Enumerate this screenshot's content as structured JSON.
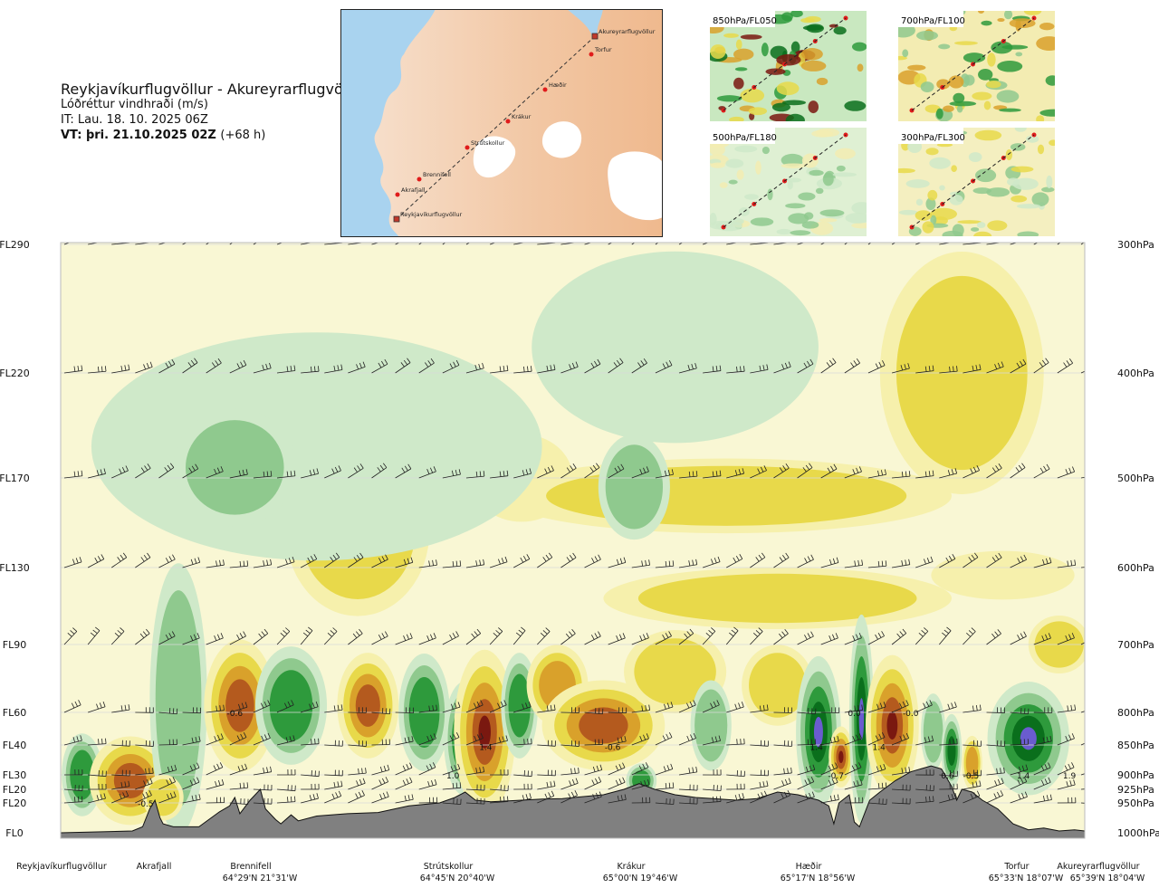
{
  "header": {
    "route": "Reykjavíkurflugvöllur - Akureyrarflugvöllur",
    "parameter": "Lóðréttur vindhraði (m/s)",
    "initial_time": "IT: Lau. 18. 10. 2025 06Z",
    "valid_time": "VT: þri. 21.10.2025 02Z",
    "lead_time": "(+68 h)"
  },
  "map": {
    "waypoints": [
      "Reykjavíkurflugvöllur",
      "Akrafjall",
      "Brennifell",
      "Strútskollur",
      "Krákur",
      "Hæðir",
      "Torfur",
      "Akureyrarflugvöllur"
    ]
  },
  "panels": [
    {
      "label": "850hPa/FL050"
    },
    {
      "label": "700hPa/FL100"
    },
    {
      "label": "500hPa/FL180"
    },
    {
      "label": "300hPa/FL300"
    }
  ],
  "colors": {
    "terrain": "#808080",
    "pos_weak": "#f6f0ac",
    "pos_mid": "#e8d94a",
    "pos_strong": "#d9a12b",
    "pos_very": "#b45a1e",
    "pos_max": "#7a1810",
    "neg_weak": "#cfe9c9",
    "neg_mid": "#8fc98e",
    "neg_strong": "#2e9a3c",
    "neg_very": "#0a6f1c",
    "neg_max": "#6a5ccf"
  },
  "chart_data": {
    "type": "heatmap",
    "title": "Lóðréttur vindhraði (m/s)",
    "left_axis": {
      "labels": [
        "FL290",
        "FL220",
        "FL170",
        "FL130",
        "FL90",
        "FL60",
        "FL40",
        "FL30",
        "FL20",
        "FL20",
        "FL0"
      ]
    },
    "right_axis": {
      "labels": [
        "300hPa",
        "400hPa",
        "500hPa",
        "600hPa",
        "700hPa",
        "800hPa",
        "850hPa",
        "900hPa",
        "925hPa",
        "950hPa",
        "1000hPa"
      ],
      "levels_hPa": [
        300,
        400,
        500,
        600,
        700,
        800,
        850,
        900,
        925,
        950,
        1000
      ],
      "range_hPa": [
        1000,
        300
      ]
    },
    "stations": [
      {
        "name": "Reykjavíkurflugvöllur",
        "coord": "",
        "x": 0.0
      },
      {
        "name": "Akrafjall",
        "coord": "",
        "x": 0.09
      },
      {
        "name": "Brennifell",
        "coord": "64°29'N 21°31'W",
        "x": 0.19
      },
      {
        "name": "Strútskollur",
        "coord": "64°45'N 20°40'W",
        "x": 0.38
      },
      {
        "name": "Krákur",
        "coord": "65°00'N 19°46'W",
        "x": 0.57
      },
      {
        "name": "Hæðir",
        "coord": "65°17'N 18°56'W",
        "x": 0.75
      },
      {
        "name": "Torfur",
        "coord": "65°33'N 18°07'W",
        "x": 0.95
      },
      {
        "name": "Akureyrarflugvöllur",
        "coord": "65°39'N 18°04'W",
        "x": 1.0
      }
    ],
    "contour_labels": [
      {
        "text": "-0.6",
        "x": 0.17,
        "p": 800
      },
      {
        "text": "-0.5",
        "x": 0.083,
        "p": 950
      },
      {
        "text": "1.0",
        "x": 0.383,
        "p": 900
      },
      {
        "text": "1.4",
        "x": 0.415,
        "p": 852
      },
      {
        "text": "-0.6",
        "x": 0.539,
        "p": 852
      },
      {
        "text": "1.4",
        "x": 0.738,
        "p": 852
      },
      {
        "text": "0.0",
        "x": 0.775,
        "p": 800
      },
      {
        "text": "-0.7",
        "x": 0.757,
        "p": 900
      },
      {
        "text": "1.4",
        "x": 0.799,
        "p": 852
      },
      {
        "text": "-0.0",
        "x": 0.83,
        "p": 800
      },
      {
        "text": "0.6",
        "x": 0.866,
        "p": 900
      },
      {
        "text": "-0.5",
        "x": 0.889,
        "p": 900
      },
      {
        "text": "1.4",
        "x": 0.94,
        "p": 900
      },
      {
        "text": "1.9",
        "x": 0.985,
        "p": 900
      }
    ],
    "terrain_profile": [
      [
        0.0,
        1000
      ],
      [
        0.07,
        997
      ],
      [
        0.08,
        990
      ],
      [
        0.087,
        960
      ],
      [
        0.092,
        945
      ],
      [
        0.097,
        975
      ],
      [
        0.1,
        985
      ],
      [
        0.11,
        990
      ],
      [
        0.135,
        990
      ],
      [
        0.155,
        965
      ],
      [
        0.165,
        955
      ],
      [
        0.17,
        940
      ],
      [
        0.175,
        968
      ],
      [
        0.185,
        945
      ],
      [
        0.195,
        925
      ],
      [
        0.2,
        960
      ],
      [
        0.21,
        978
      ],
      [
        0.215,
        985
      ],
      [
        0.225,
        970
      ],
      [
        0.232,
        980
      ],
      [
        0.25,
        972
      ],
      [
        0.28,
        968
      ],
      [
        0.31,
        966
      ],
      [
        0.34,
        955
      ],
      [
        0.37,
        950
      ],
      [
        0.385,
        940
      ],
      [
        0.395,
        930
      ],
      [
        0.405,
        945
      ],
      [
        0.42,
        948
      ],
      [
        0.45,
        945
      ],
      [
        0.47,
        943
      ],
      [
        0.49,
        942
      ],
      [
        0.53,
        935
      ],
      [
        0.55,
        925
      ],
      [
        0.565,
        915
      ],
      [
        0.58,
        925
      ],
      [
        0.6,
        935
      ],
      [
        0.62,
        940
      ],
      [
        0.66,
        945
      ],
      [
        0.68,
        942
      ],
      [
        0.7,
        930
      ],
      [
        0.72,
        935
      ],
      [
        0.74,
        945
      ],
      [
        0.75,
        955
      ],
      [
        0.755,
        985
      ],
      [
        0.76,
        950
      ],
      [
        0.77,
        935
      ],
      [
        0.775,
        982
      ],
      [
        0.78,
        990
      ],
      [
        0.79,
        945
      ],
      [
        0.8,
        930
      ],
      [
        0.815,
        910
      ],
      [
        0.83,
        895
      ],
      [
        0.85,
        885
      ],
      [
        0.86,
        890
      ],
      [
        0.87,
        920
      ],
      [
        0.875,
        945
      ],
      [
        0.88,
        925
      ],
      [
        0.89,
        930
      ],
      [
        0.9,
        945
      ],
      [
        0.915,
        960
      ],
      [
        0.93,
        985
      ],
      [
        0.945,
        995
      ],
      [
        0.96,
        992
      ],
      [
        0.975,
        997
      ],
      [
        0.99,
        995
      ],
      [
        1.0,
        997
      ]
    ],
    "cells": [
      {
        "v": 0.3,
        "x": 0.29,
        "p": 560,
        "rx": 0.07,
        "rp": 95
      },
      {
        "v": 0.25,
        "x": 0.45,
        "p": 500,
        "rx": 0.05,
        "rp": 45
      },
      {
        "v": 0.3,
        "x": 0.65,
        "p": 520,
        "rx": 0.22,
        "rp": 40
      },
      {
        "v": 0.3,
        "x": 0.88,
        "p": 400,
        "rx": 0.08,
        "rp": 110
      },
      {
        "v": 0.35,
        "x": 0.7,
        "p": 640,
        "rx": 0.17,
        "rp": 40
      },
      {
        "v": 0.25,
        "x": 0.92,
        "p": 610,
        "rx": 0.07,
        "rp": 30
      },
      {
        "v": -0.2,
        "x": 0.25,
        "p": 470,
        "rx": 0.22,
        "rp": 110
      },
      {
        "v": -0.2,
        "x": 0.6,
        "p": 380,
        "rx": 0.14,
        "rp": 80
      },
      {
        "v": -0.45,
        "x": 0.17,
        "p": 490,
        "rx": 0.06,
        "rp": 60
      },
      {
        "v": -0.35,
        "x": 0.56,
        "p": 510,
        "rx": 0.035,
        "rp": 55
      },
      {
        "v": -0.6,
        "x": 0.021,
        "p": 900,
        "rx": 0.02,
        "rp": 70
      },
      {
        "v": 1.0,
        "x": 0.068,
        "p": 910,
        "rx": 0.04,
        "rp": 75
      },
      {
        "v": -0.4,
        "x": 0.115,
        "p": 780,
        "rx": 0.028,
        "rp": 200
      },
      {
        "v": 1.0,
        "x": 0.175,
        "p": 790,
        "rx": 0.035,
        "rp": 100
      },
      {
        "v": -0.6,
        "x": 0.225,
        "p": 790,
        "rx": 0.035,
        "rp": 90
      },
      {
        "v": 0.9,
        "x": 0.3,
        "p": 790,
        "rx": 0.03,
        "rp": 80
      },
      {
        "v": -0.6,
        "x": 0.355,
        "p": 800,
        "rx": 0.025,
        "rp": 90
      },
      {
        "v": -1.2,
        "x": 0.394,
        "p": 840,
        "rx": 0.02,
        "rp": 90
      },
      {
        "v": 1.4,
        "x": 0.414,
        "p": 830,
        "rx": 0.03,
        "rp": 130
      },
      {
        "v": -0.8,
        "x": 0.448,
        "p": 790,
        "rx": 0.018,
        "rp": 80
      },
      {
        "v": 0.8,
        "x": 0.485,
        "p": 760,
        "rx": 0.03,
        "rp": 60
      },
      {
        "v": 1.0,
        "x": 0.53,
        "p": 820,
        "rx": 0.06,
        "rp": 70
      },
      {
        "v": 0.55,
        "x": 0.6,
        "p": 740,
        "rx": 0.05,
        "rp": 60
      },
      {
        "v": -0.7,
        "x": 0.567,
        "p": 910,
        "rx": 0.015,
        "rp": 30
      },
      {
        "v": -0.45,
        "x": 0.635,
        "p": 820,
        "rx": 0.02,
        "rp": 70
      },
      {
        "v": 0.5,
        "x": 0.7,
        "p": 760,
        "rx": 0.035,
        "rp": 60
      },
      {
        "v": -1.4,
        "x": 0.74,
        "p": 830,
        "rx": 0.022,
        "rp": 120
      },
      {
        "v": 1.3,
        "x": 0.762,
        "p": 870,
        "rx": 0.012,
        "rp": 50
      },
      {
        "v": -1.3,
        "x": 0.782,
        "p": 810,
        "rx": 0.012,
        "rp": 160
      },
      {
        "v": 1.4,
        "x": 0.812,
        "p": 820,
        "rx": 0.026,
        "rp": 110
      },
      {
        "v": -0.5,
        "x": 0.852,
        "p": 830,
        "rx": 0.012,
        "rp": 60
      },
      {
        "v": -0.9,
        "x": 0.87,
        "p": 860,
        "rx": 0.01,
        "rp": 60
      },
      {
        "v": 0.8,
        "x": 0.89,
        "p": 880,
        "rx": 0.01,
        "rp": 45
      },
      {
        "v": -1.6,
        "x": 0.945,
        "p": 840,
        "rx": 0.04,
        "rp": 90
      },
      {
        "v": 0.5,
        "x": 0.975,
        "p": 700,
        "rx": 0.03,
        "rp": 40
      },
      {
        "v": 0.45,
        "x": 0.1,
        "p": 940,
        "rx": 0.02,
        "rp": 40
      }
    ],
    "wind_barbs": {
      "levels_hPa": [
        300,
        400,
        500,
        600,
        700,
        800,
        850,
        900,
        925,
        950
      ],
      "count_per_level": 44
    }
  }
}
